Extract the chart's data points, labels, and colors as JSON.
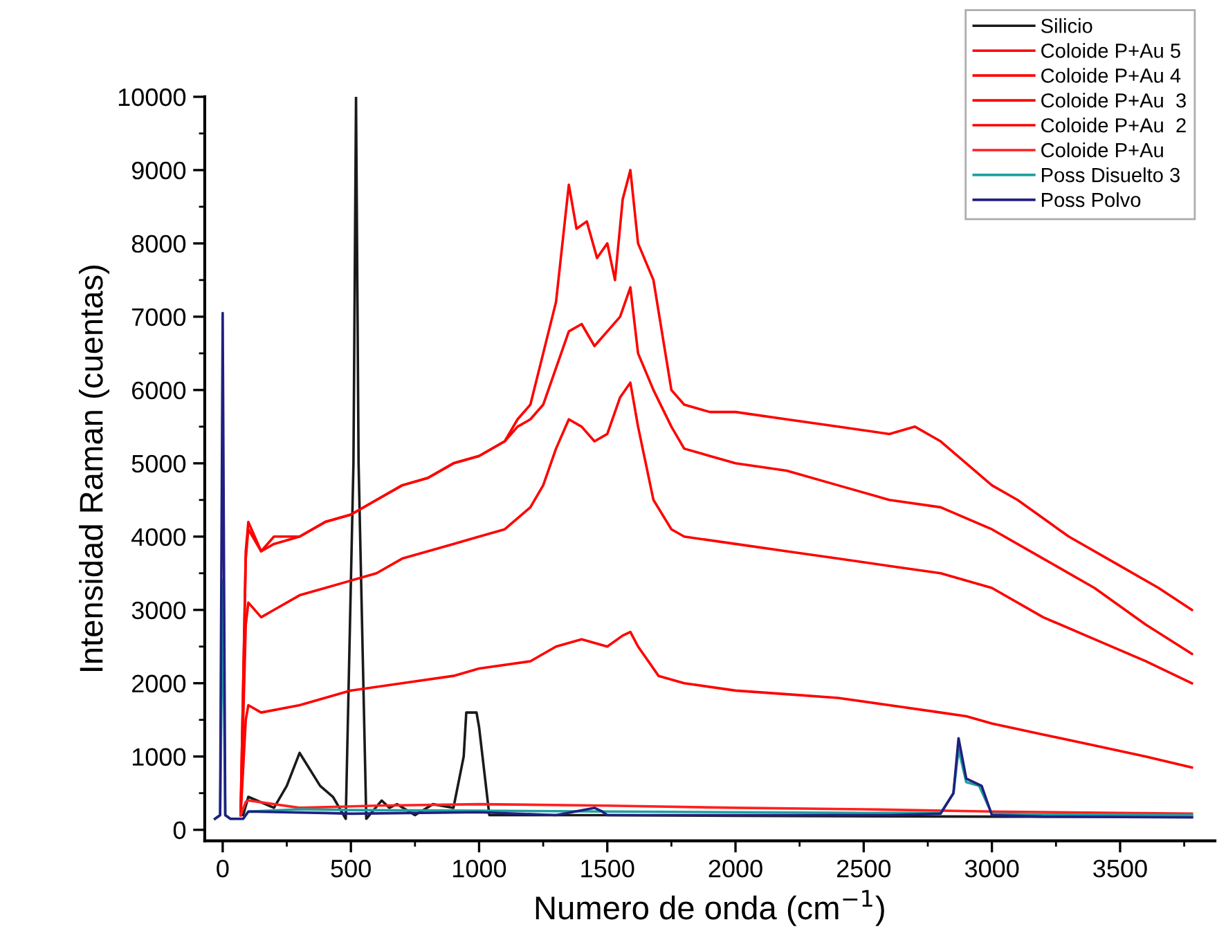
{
  "chart_data": {
    "type": "line",
    "xlabel": "Numero de onda (cm$^{−1}$)",
    "ylabel": "Intensidad Raman (cuentas)",
    "xlim": [
      -70,
      3870
    ],
    "ylim": [
      -150,
      10000
    ],
    "xticks": [
      0,
      500,
      1000,
      1500,
      2000,
      2500,
      3000,
      3500
    ],
    "yticks": [
      0,
      1000,
      2000,
      3000,
      4000,
      5000,
      6000,
      7000,
      8000,
      9000,
      10000
    ],
    "grid": false,
    "legend": "top right",
    "line_style": "solid",
    "marker": "none",
    "series": [
      {
        "name": "Silicio",
        "color": "#1a1a1a",
        "x": [
          80,
          100,
          200,
          250,
          300,
          380,
          430,
          480,
          510,
          520,
          530,
          560,
          620,
          650,
          680,
          750,
          820,
          900,
          940,
          950,
          990,
          1000,
          1040,
          1500,
          2000,
          3000,
          3780
        ],
        "values": [
          200,
          450,
          300,
          600,
          1050,
          600,
          450,
          150,
          5000,
          10000,
          5000,
          150,
          400,
          300,
          350,
          200,
          350,
          300,
          1000,
          1600,
          1600,
          1400,
          200,
          200,
          190,
          180,
          180
        ]
      },
      {
        "name": "Coloide P+Au 5",
        "color": "#ff0000",
        "x": [
          70,
          90,
          100,
          150,
          200,
          300,
          400,
          500,
          600,
          700,
          800,
          900,
          1000,
          1100,
          1150,
          1200,
          1250,
          1300,
          1350,
          1380,
          1420,
          1460,
          1500,
          1530,
          1560,
          1590,
          1620,
          1680,
          1750,
          1800,
          1900,
          2000,
          2200,
          2400,
          2600,
          2700,
          2800,
          2900,
          3000,
          3100,
          3300,
          3500,
          3650,
          3780
        ],
        "values": [
          200,
          3800,
          4200,
          3800,
          4000,
          4000,
          4200,
          4300,
          4500,
          4700,
          4800,
          5000,
          5100,
          5300,
          5600,
          5800,
          6500,
          7200,
          8800,
          8200,
          8300,
          7800,
          8000,
          7500,
          8600,
          9000,
          8000,
          7500,
          6000,
          5800,
          5700,
          5700,
          5600,
          5500,
          5400,
          5500,
          5300,
          5000,
          4700,
          4500,
          4000,
          3600,
          3300,
          3000
        ]
      },
      {
        "name": "Coloide P+Au 4",
        "color": "#ff0000",
        "x": [
          70,
          90,
          100,
          150,
          200,
          300,
          400,
          500,
          600,
          700,
          800,
          900,
          1000,
          1100,
          1150,
          1200,
          1250,
          1300,
          1350,
          1400,
          1450,
          1500,
          1550,
          1590,
          1620,
          1680,
          1750,
          1800,
          1900,
          2000,
          2200,
          2400,
          2600,
          2800,
          3000,
          3200,
          3400,
          3600,
          3780
        ],
        "values": [
          200,
          3700,
          4100,
          3800,
          3900,
          4000,
          4200,
          4300,
          4500,
          4700,
          4800,
          5000,
          5100,
          5300,
          5500,
          5600,
          5800,
          6300,
          6800,
          6900,
          6600,
          6800,
          7000,
          7400,
          6500,
          6000,
          5500,
          5200,
          5100,
          5000,
          4900,
          4700,
          4500,
          4400,
          4100,
          3700,
          3300,
          2800,
          2400
        ]
      },
      {
        "name": "Coloide P+Au  3",
        "color": "#ff0000",
        "x": [
          70,
          90,
          100,
          150,
          200,
          300,
          400,
          500,
          600,
          700,
          800,
          900,
          1000,
          1100,
          1200,
          1250,
          1300,
          1350,
          1400,
          1450,
          1500,
          1550,
          1590,
          1620,
          1680,
          1750,
          1800,
          2000,
          2200,
          2400,
          2600,
          2800,
          3000,
          3200,
          3400,
          3600,
          3780
        ],
        "values": [
          200,
          2800,
          3100,
          2900,
          3000,
          3200,
          3300,
          3400,
          3500,
          3700,
          3800,
          3900,
          4000,
          4100,
          4400,
          4700,
          5200,
          5600,
          5500,
          5300,
          5400,
          5900,
          6100,
          5500,
          4500,
          4100,
          4000,
          3900,
          3800,
          3700,
          3600,
          3500,
          3300,
          2900,
          2600,
          2300,
          2000
        ]
      },
      {
        "name": "Coloide P+Au  2",
        "color": "#ff0000",
        "x": [
          70,
          90,
          100,
          150,
          300,
          500,
          700,
          900,
          1000,
          1200,
          1300,
          1400,
          1500,
          1560,
          1590,
          1620,
          1700,
          1800,
          2000,
          2200,
          2400,
          2600,
          2800,
          2900,
          3000,
          3200,
          3400,
          3600,
          3780
        ],
        "values": [
          200,
          1500,
          1700,
          1600,
          1700,
          1900,
          2000,
          2100,
          2200,
          2300,
          2500,
          2600,
          2500,
          2650,
          2700,
          2500,
          2100,
          2000,
          1900,
          1850,
          1800,
          1700,
          1600,
          1550,
          1450,
          1300,
          1150,
          1000,
          850
        ]
      },
      {
        "name": "Coloide P+Au",
        "color": "#ff2020",
        "x": [
          70,
          90,
          100,
          300,
          600,
          1000,
          1500,
          2000,
          2500,
          3000,
          3500,
          3780
        ],
        "values": [
          200,
          380,
          400,
          300,
          330,
          350,
          330,
          300,
          280,
          250,
          230,
          220
        ]
      },
      {
        "name": "Poss Disuelto 3",
        "color": "#20a0a0",
        "x": [
          -30,
          -10,
          0,
          10,
          30,
          80,
          100,
          300,
          500,
          1000,
          1500,
          2000,
          2500,
          2800,
          2850,
          2870,
          2900,
          2950,
          3000,
          3200,
          3780
        ],
        "values": [
          150,
          200,
          3400,
          200,
          150,
          150,
          250,
          280,
          270,
          260,
          250,
          240,
          230,
          230,
          500,
          1100,
          650,
          600,
          220,
          210,
          200
        ]
      },
      {
        "name": "Poss Polvo",
        "color": "#202080",
        "x": [
          -30,
          -10,
          0,
          10,
          30,
          80,
          100,
          400,
          500,
          1000,
          1300,
          1450,
          1480,
          1500,
          2000,
          2600,
          2800,
          2850,
          2870,
          2900,
          2930,
          2960,
          3000,
          3200,
          3780
        ],
        "values": [
          150,
          200,
          7050,
          200,
          150,
          150,
          250,
          230,
          220,
          240,
          200,
          300,
          250,
          200,
          200,
          200,
          220,
          500,
          1250,
          700,
          650,
          600,
          200,
          180,
          170
        ]
      }
    ]
  }
}
